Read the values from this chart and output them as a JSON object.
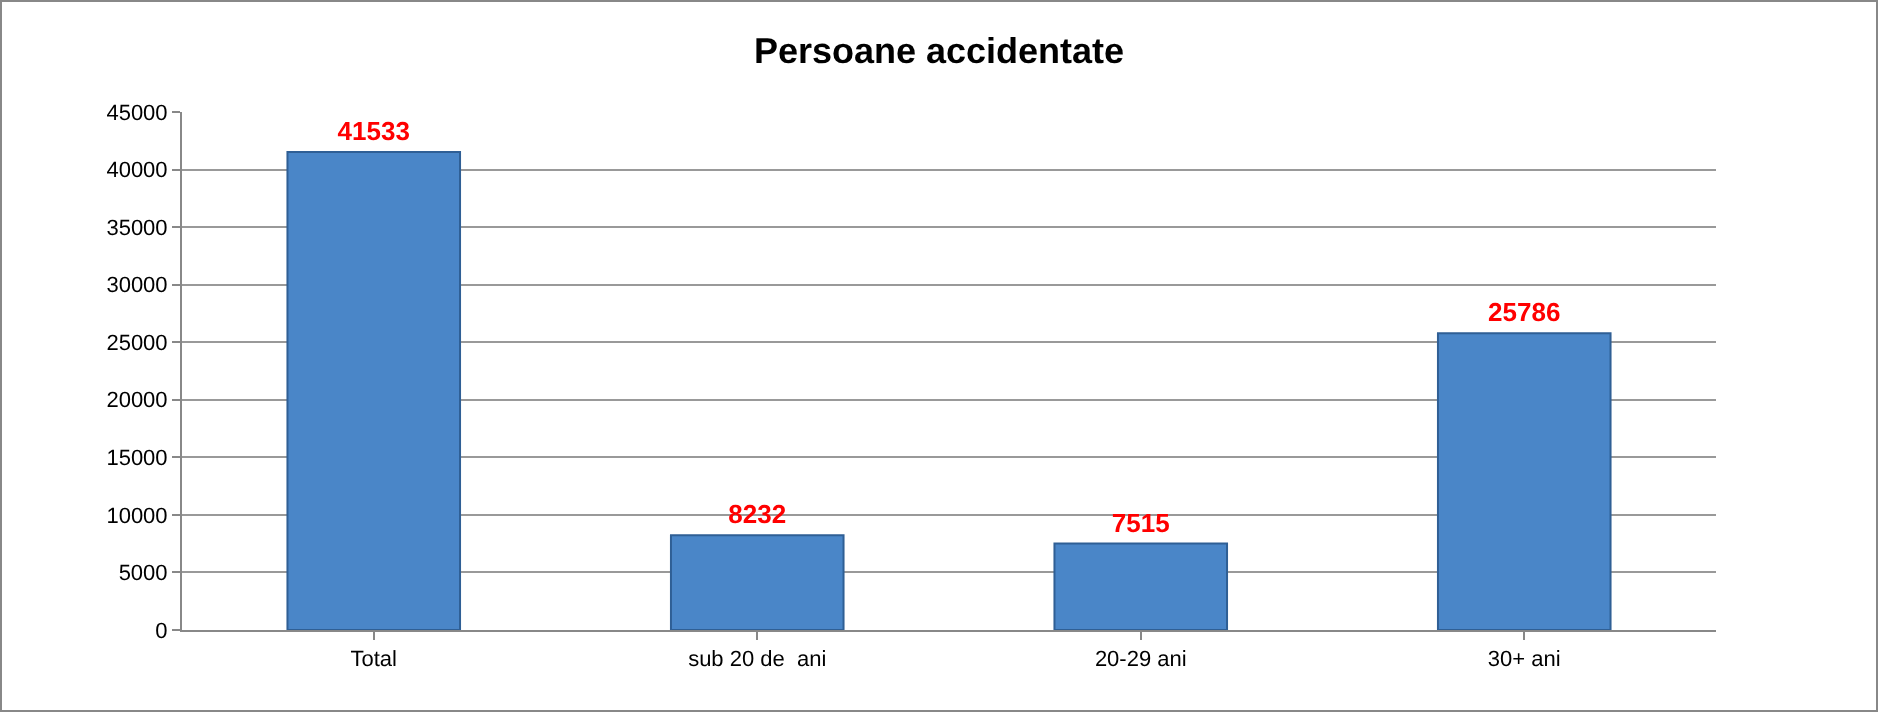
{
  "chart_data": {
    "type": "bar",
    "title": "Persoane accidentate",
    "categories": [
      "Total",
      "sub 20 de  ani",
      "20-29 ani",
      "30+ ani"
    ],
    "values": [
      41533,
      8232,
      7515,
      25786
    ],
    "color": "#4a86c8",
    "ylim": [
      0,
      45000
    ],
    "yticks": [
      0,
      5000,
      10000,
      15000,
      20000,
      25000,
      30000,
      35000,
      40000,
      45000
    ],
    "grid": "y",
    "data_labels": true
  }
}
